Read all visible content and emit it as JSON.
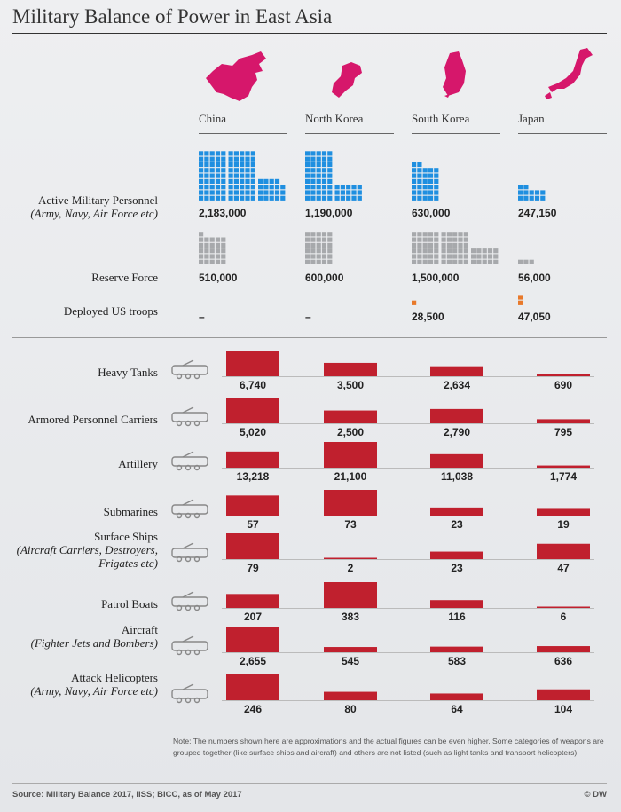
{
  "title": "Military Balance of Power in East Asia",
  "countries": [
    "China",
    "North Korea",
    "South Korea",
    "Japan"
  ],
  "map_icons": [
    "china-map-icon",
    "north-korea-map-icon",
    "south-korea-map-icon",
    "japan-map-icon"
  ],
  "personnel_rows": [
    {
      "label": "Active Military Personnel",
      "sub": "(Army, Navy, Air Force etc)",
      "values": [
        "2,183,000",
        "1,190,000",
        "630,000",
        "247,150"
      ]
    },
    {
      "label": "Reserve Force",
      "sub": "",
      "values": [
        "510,000",
        "600,000",
        "1,500,000",
        "56,000"
      ]
    },
    {
      "label": "Deployed US troops",
      "sub": "",
      "values": [
        "–",
        "–",
        "28,500",
        "47,050"
      ]
    }
  ],
  "colors": {
    "map": "#d6176b",
    "active": "#1f8fe0",
    "reserve": "#a7a9ac",
    "us": "#e8792a",
    "bar": "#c0202e"
  },
  "chart_data": {
    "type": "bar",
    "categories": [
      "China",
      "North Korea",
      "South Korea",
      "Japan"
    ],
    "rows": [
      {
        "label": "Heavy Tanks",
        "sub": "",
        "icon": "tank-icon",
        "values": [
          6740,
          3500,
          2634,
          690
        ],
        "labels": [
          "6,740",
          "3,500",
          "2,634",
          "690"
        ]
      },
      {
        "label": "Armored Personnel Carriers",
        "sub": "",
        "icon": "apc-icon",
        "values": [
          5020,
          2500,
          2790,
          795
        ],
        "labels": [
          "5,020",
          "2,500",
          "2,790",
          "795"
        ]
      },
      {
        "label": "Artillery",
        "sub": "",
        "icon": "artillery-icon",
        "values": [
          13218,
          21100,
          11038,
          1774
        ],
        "labels": [
          "13,218",
          "21,100",
          "11,038",
          "1,774"
        ]
      },
      {
        "label": "Submarines",
        "sub": "",
        "icon": "submarine-icon",
        "values": [
          57,
          73,
          23,
          19
        ],
        "labels": [
          "57",
          "73",
          "23",
          "19"
        ]
      },
      {
        "label": "Surface Ships",
        "sub": "(Aircraft Carriers, Destroyers, Frigates etc)",
        "icon": "surface-ship-icon",
        "values": [
          79,
          2,
          23,
          47
        ],
        "labels": [
          "79",
          "2",
          "23",
          "47"
        ]
      },
      {
        "label": "Patrol Boats",
        "sub": "",
        "icon": "patrol-boat-icon",
        "values": [
          207,
          383,
          116,
          6
        ],
        "labels": [
          "207",
          "383",
          "116",
          "6"
        ]
      },
      {
        "label": "Aircraft",
        "sub": "(Fighter Jets and Bombers)",
        "icon": "aircraft-icon",
        "values": [
          2655,
          545,
          583,
          636
        ],
        "labels": [
          "2,655",
          "545",
          "583",
          "636"
        ]
      },
      {
        "label": "Attack Helicopters",
        "sub": "(Army, Navy, Air Force etc)",
        "icon": "helicopter-icon",
        "values": [
          246,
          80,
          64,
          104
        ],
        "labels": [
          "246",
          "80",
          "64",
          "104"
        ]
      }
    ]
  },
  "note": "Note: The numbers shown here are approximations and the actual figures can be even higher. Some categories of weapons are grouped together (like surface ships and aircraft) and others are not listed (such as light tanks and transport helicopters).",
  "source": "Source: Military Balance 2017, IISS; BICC, as of May 2017",
  "brand": "© DW"
}
